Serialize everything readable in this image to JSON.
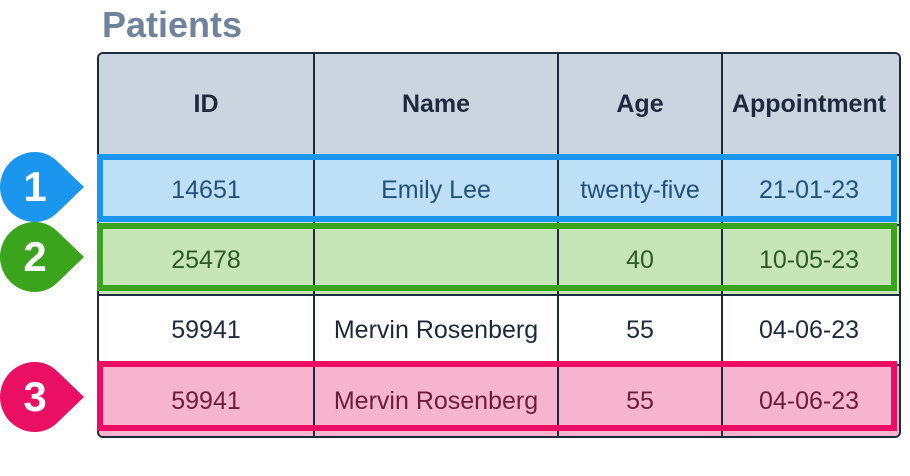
{
  "title": "Patients",
  "table": {
    "headers": [
      "ID",
      "Name",
      "Age",
      "Appointment"
    ],
    "rows": [
      [
        "14651",
        "Emily Lee",
        "twenty-five",
        "21-01-23"
      ],
      [
        "25478",
        "",
        "40",
        "10-05-23"
      ],
      [
        "59941",
        "Mervin Rosenberg",
        "55",
        "04-06-23"
      ],
      [
        "59941",
        "Mervin Rosenberg",
        "55",
        "04-06-23"
      ]
    ]
  },
  "markers": [
    "1",
    "2",
    "3"
  ],
  "colors": {
    "title": "#6f849c",
    "header_bg": "#cbd5df",
    "marker_1": "#1a96ee",
    "marker_2": "#3aa51c",
    "marker_3": "#ea0f62",
    "row_1_bg": "#bde0f7",
    "row_2_bg": "#c6e6b8",
    "row_4_bg": "#f7b4ce"
  }
}
